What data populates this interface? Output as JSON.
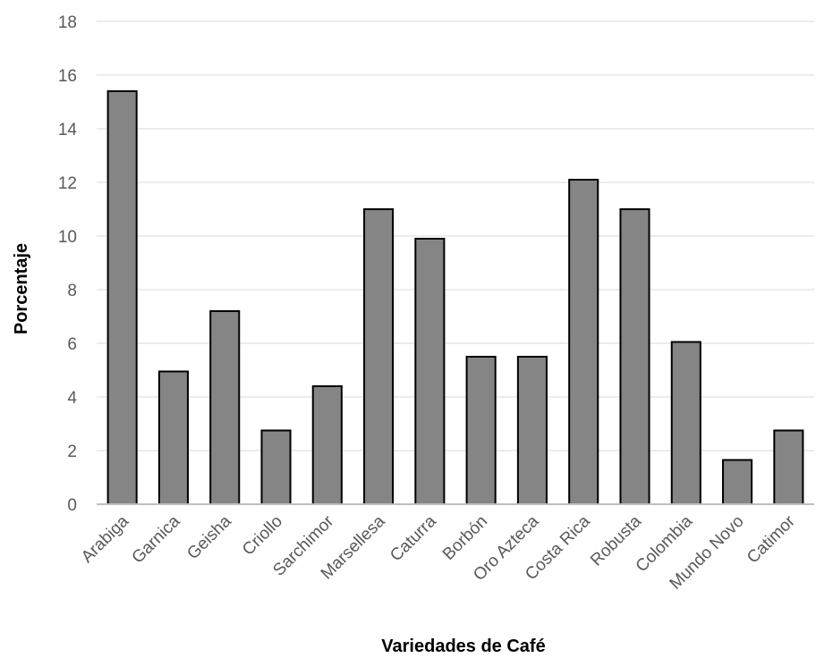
{
  "chart_data": {
    "type": "bar",
    "title": "",
    "xlabel": "Variedades de Café",
    "ylabel": "Porcentaje",
    "categories": [
      "Arabiga",
      "Garnica",
      "Geisha",
      "Criollo",
      "Sarchimor",
      "Marsellesa",
      "Caturra",
      "Borbón",
      "Oro Azteca",
      "Costa Rica",
      "Robusta",
      "Colombia",
      "Mundo Novo",
      "Catimor"
    ],
    "values": [
      15.4,
      4.95,
      7.2,
      2.75,
      4.4,
      11.0,
      9.9,
      5.5,
      5.5,
      12.1,
      11.0,
      6.05,
      1.65,
      2.75
    ],
    "ylim": [
      0,
      18
    ],
    "yticks": [
      0,
      2,
      4,
      6,
      8,
      10,
      12,
      14,
      16,
      18
    ],
    "grid": true,
    "legend": "none",
    "colors": {
      "bar_fill": "#858585",
      "bar_stroke": "#000000",
      "grid": "#e6e6e6",
      "axis": "#bfbfbf"
    }
  }
}
